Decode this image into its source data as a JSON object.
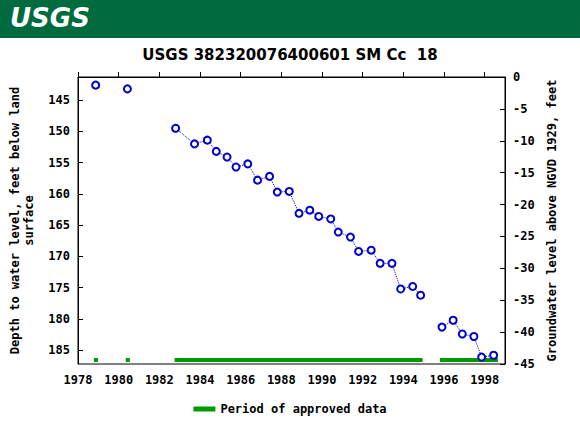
{
  "chart_data": {
    "type": "line",
    "banner": "USGS",
    "title": "USGS 382320076400601 SM Cc  18",
    "ylabel": "Depth to water level, feet below land\nsurface",
    "y2label": "Groundwater level above NGVD 1929, feet",
    "x": [
      1978.87,
      null,
      1980.43,
      null,
      1982.8,
      1983.73,
      1984.36,
      1984.8,
      1985.33,
      1985.77,
      1986.35,
      1986.83,
      1987.42,
      1987.8,
      1988.39,
      1988.87,
      1989.4,
      1989.84,
      1990.43,
      1990.8,
      1991.4,
      1991.8,
      1992.42,
      1992.86,
      1993.44,
      1993.87,
      1994.46,
      1994.85,
      null,
      1995.9,
      1996.45,
      1996.9,
      1997.47,
      1997.85,
      1998.44
    ],
    "values": [
      142.6,
      null,
      143.2,
      null,
      149.5,
      152.0,
      151.4,
      153.2,
      154.1,
      155.7,
      155.2,
      157.8,
      157.2,
      159.7,
      159.6,
      163.1,
      162.6,
      163.6,
      164.0,
      166.1,
      166.9,
      169.2,
      169.0,
      171.1,
      171.1,
      175.2,
      174.8,
      176.2,
      null,
      181.3,
      180.2,
      182.4,
      182.8,
      186.1,
      185.8
    ],
    "color": "#0000cc",
    "marker": "circle_open",
    "line_style": "dotted",
    "approved_periods": {
      "name": "Period of approved data",
      "color": "#009900",
      "ranges": [
        [
          1978.78,
          1978.98
        ],
        [
          1980.35,
          1980.55
        ],
        [
          1982.75,
          1994.95
        ],
        [
          1995.8,
          1998.65
        ]
      ]
    },
    "xlim": [
      1978,
      1999
    ],
    "xticks": [
      1978,
      1980,
      1982,
      1984,
      1986,
      1988,
      1990,
      1992,
      1994,
      1996,
      1998
    ],
    "ylim": [
      187.2,
      141.3
    ],
    "yticks": [
      145,
      150,
      155,
      160,
      165,
      170,
      175,
      180,
      185
    ],
    "y2lim": [
      -45,
      0
    ],
    "y2ticks": [
      0,
      -5,
      -10,
      -15,
      -20,
      -25,
      -30,
      -35,
      -40,
      -45
    ],
    "grid": false,
    "legend": "bottom"
  }
}
